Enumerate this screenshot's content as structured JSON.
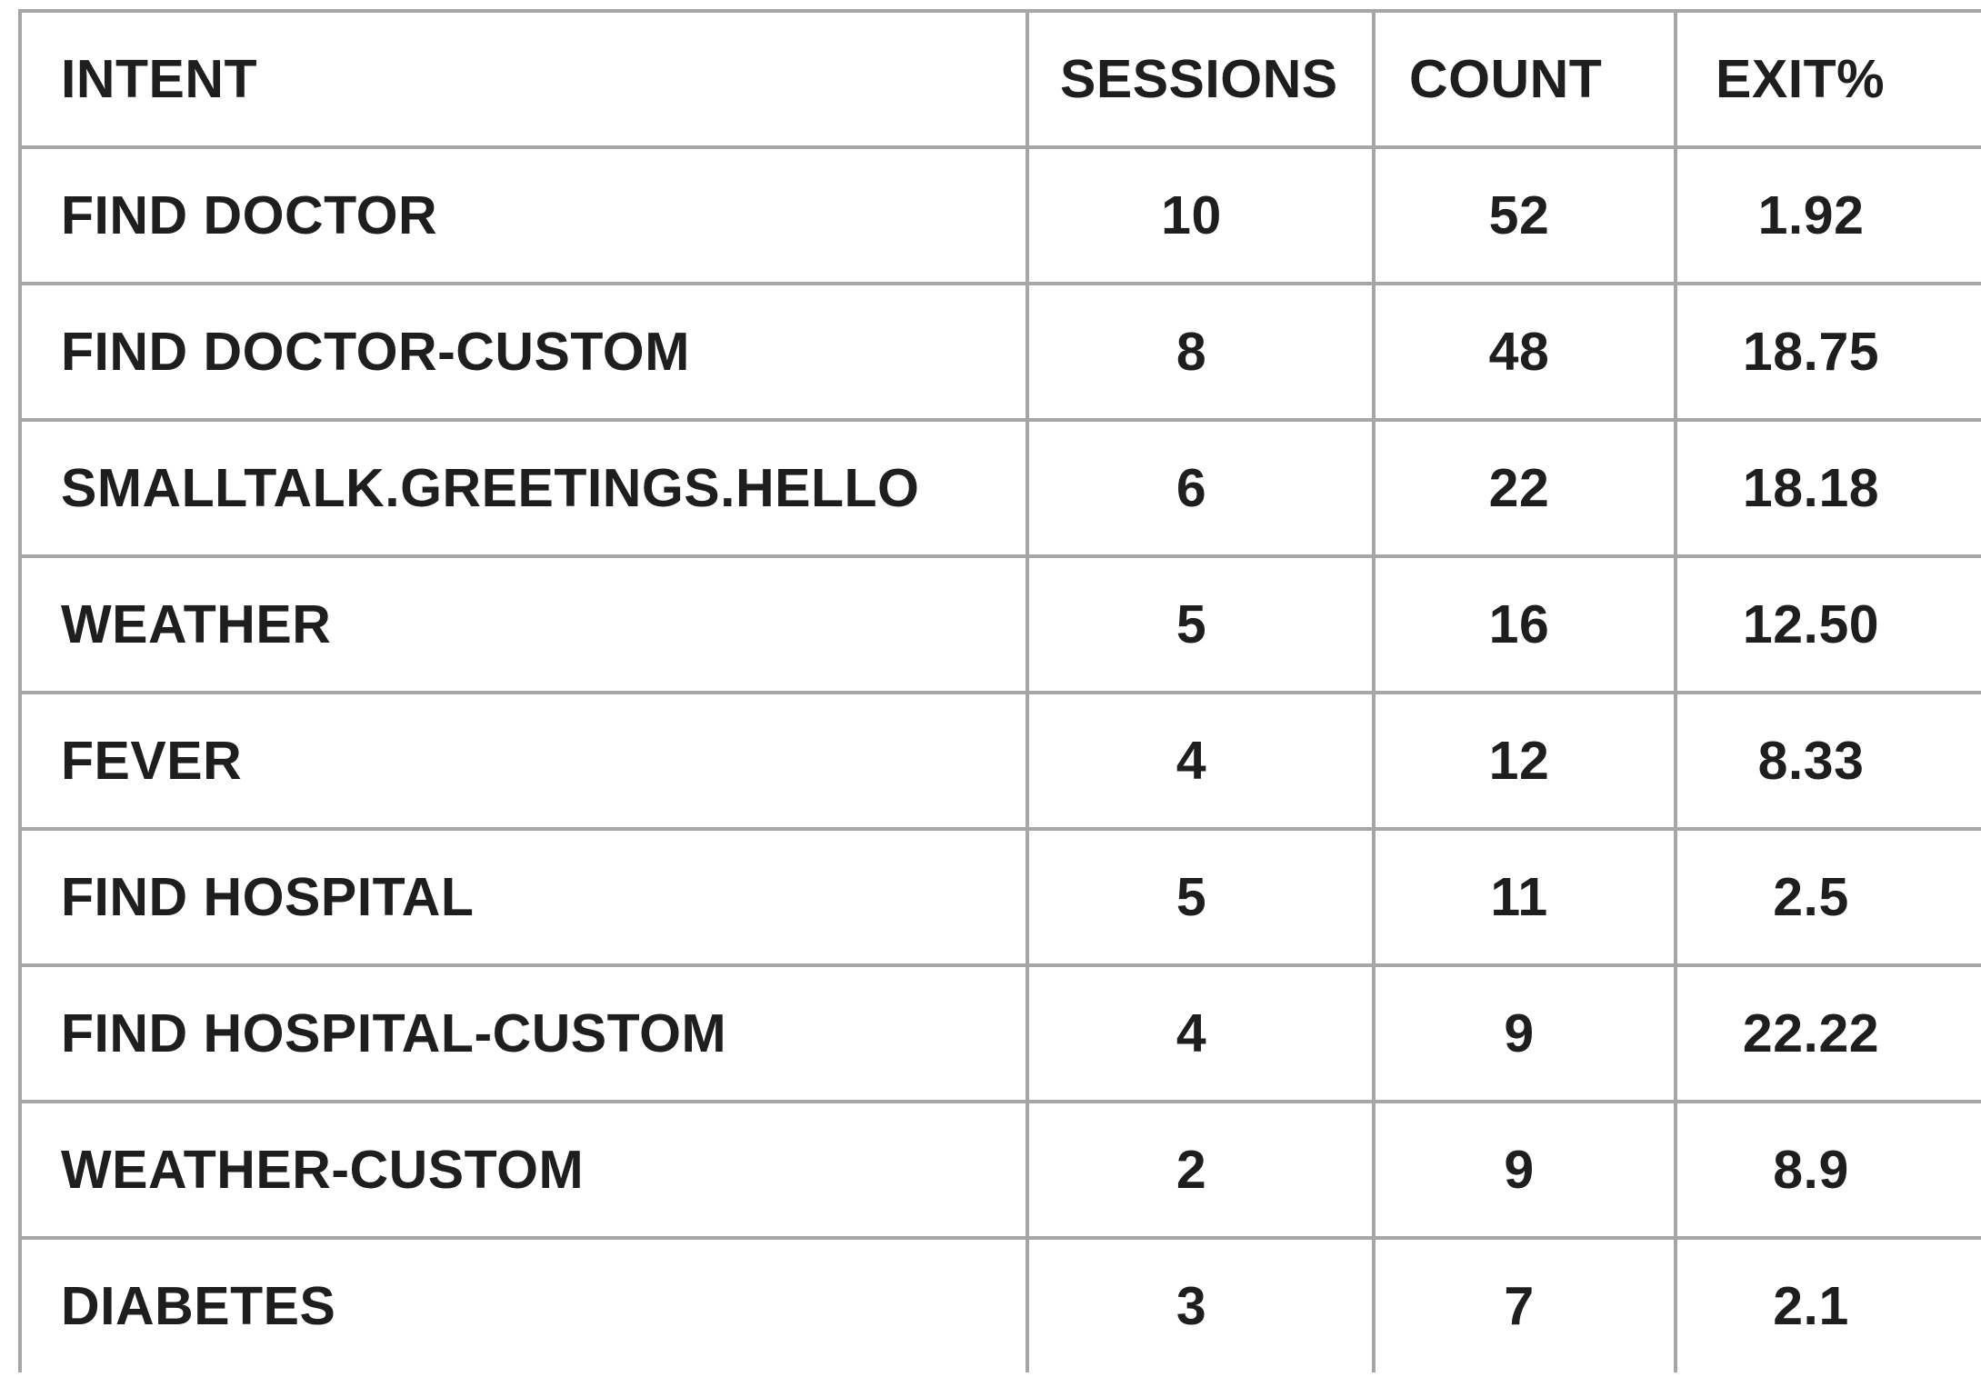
{
  "chart_data": {
    "type": "table",
    "columns": [
      "INTENT",
      "SESSIONS",
      "COUNT",
      "EXIT%"
    ],
    "rows": [
      [
        "FIND DOCTOR",
        "10",
        "52",
        "1.92"
      ],
      [
        "FIND DOCTOR-CUSTOM",
        "8",
        "48",
        "18.75"
      ],
      [
        "SMALLTALK.GREETINGS.HELLO",
        "6",
        "22",
        "18.18"
      ],
      [
        "WEATHER",
        "5",
        "16",
        "12.50"
      ],
      [
        "FEVER",
        "4",
        "12",
        "8.33"
      ],
      [
        "FIND HOSPITAL",
        "5",
        "11",
        "2.5"
      ],
      [
        "FIND HOSPITAL-CUSTOM",
        "4",
        "9",
        "22.22"
      ],
      [
        "WEATHER-CUSTOM",
        "2",
        "9",
        "8.9"
      ],
      [
        "DIABETES",
        "3",
        "7",
        "2.1"
      ]
    ]
  }
}
